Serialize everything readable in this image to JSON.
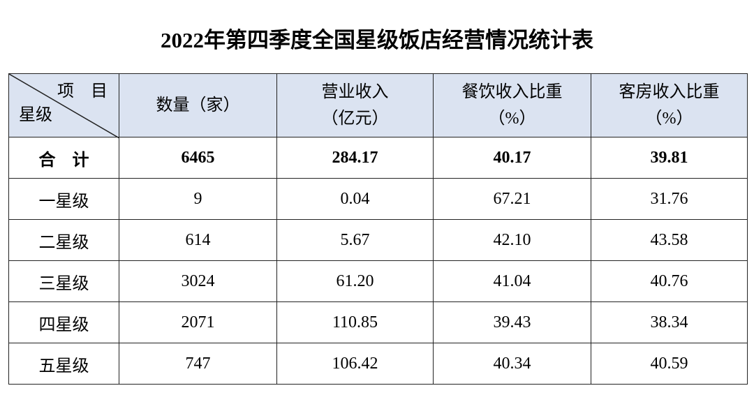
{
  "title": "2022年第四季度全国星级饭店经营情况统计表",
  "table": {
    "corner": {
      "column_label": "项　目",
      "row_label": "星级"
    },
    "headers": [
      [
        "数量（家）"
      ],
      [
        "营业收入",
        "（亿元）"
      ],
      [
        "餐饮收入比重",
        "（%）"
      ],
      [
        "客房收入比重",
        "（%）"
      ]
    ],
    "rows": [
      [
        "合　计",
        "6465",
        "284.17",
        "40.17",
        "39.81"
      ],
      [
        "一星级",
        "9",
        "0.04",
        "67.21",
        "31.76"
      ],
      [
        "二星级",
        "614",
        "5.67",
        "42.10",
        "43.58"
      ],
      [
        "三星级",
        "3024",
        "61.20",
        "41.04",
        "40.76"
      ],
      [
        "四星级",
        "2071",
        "110.85",
        "39.43",
        "38.34"
      ],
      [
        "五星级",
        "747",
        "106.42",
        "40.34",
        "40.59"
      ]
    ]
  }
}
